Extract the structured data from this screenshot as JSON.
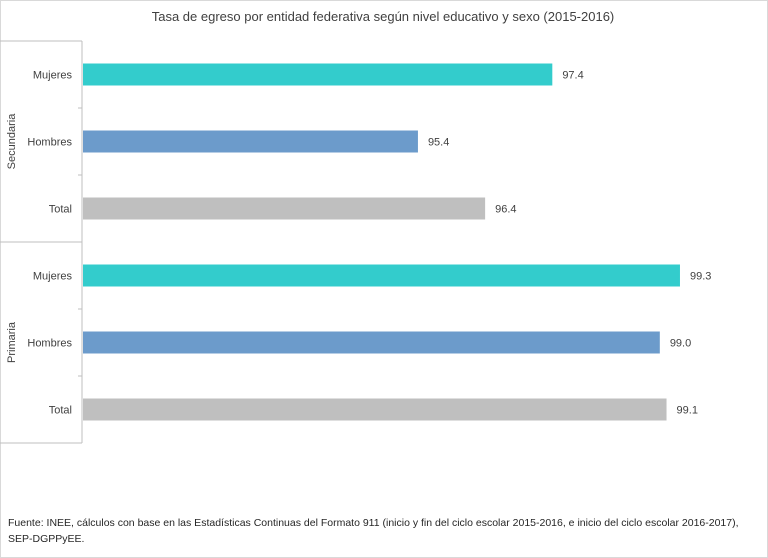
{
  "title": "Tasa de egreso por entidad federativa según nivel educativo y sexo (2015-2016)",
  "source": "Fuente: INEE, cálculos con base en las Estadísticas Continuas  del Formato 911 (inicio  y fin del ciclo escolar 2015-2016, e inicio del ciclo escolar 2016-2017), SEP-DGPPyEE.",
  "chart_data": {
    "type": "bar",
    "orientation": "horizontal",
    "title": "Tasa de egreso por entidad federativa según nivel educativo y sexo (2015-2016)",
    "groups": [
      {
        "name": "Secundaria",
        "categories": [
          "Mujeres",
          "Hombres",
          "Total"
        ],
        "values": [
          97.4,
          95.4,
          96.4
        ],
        "labels": [
          "97.4",
          "95.4",
          "96.4"
        ],
        "colors": [
          "#33cccc",
          "#6c9bcb",
          "#bfbfbf"
        ]
      },
      {
        "name": "Primaria",
        "categories": [
          "Mujeres",
          "Hombres",
          "Total"
        ],
        "values": [
          99.3,
          99.0,
          99.1
        ],
        "labels": [
          "99.3",
          "99.0",
          "99.1"
        ],
        "colors": [
          "#33cccc",
          "#6c9bcb",
          "#bfbfbf"
        ]
      }
    ],
    "xlim": [
      90.4,
      100
    ],
    "grid": false,
    "legend": "none"
  }
}
